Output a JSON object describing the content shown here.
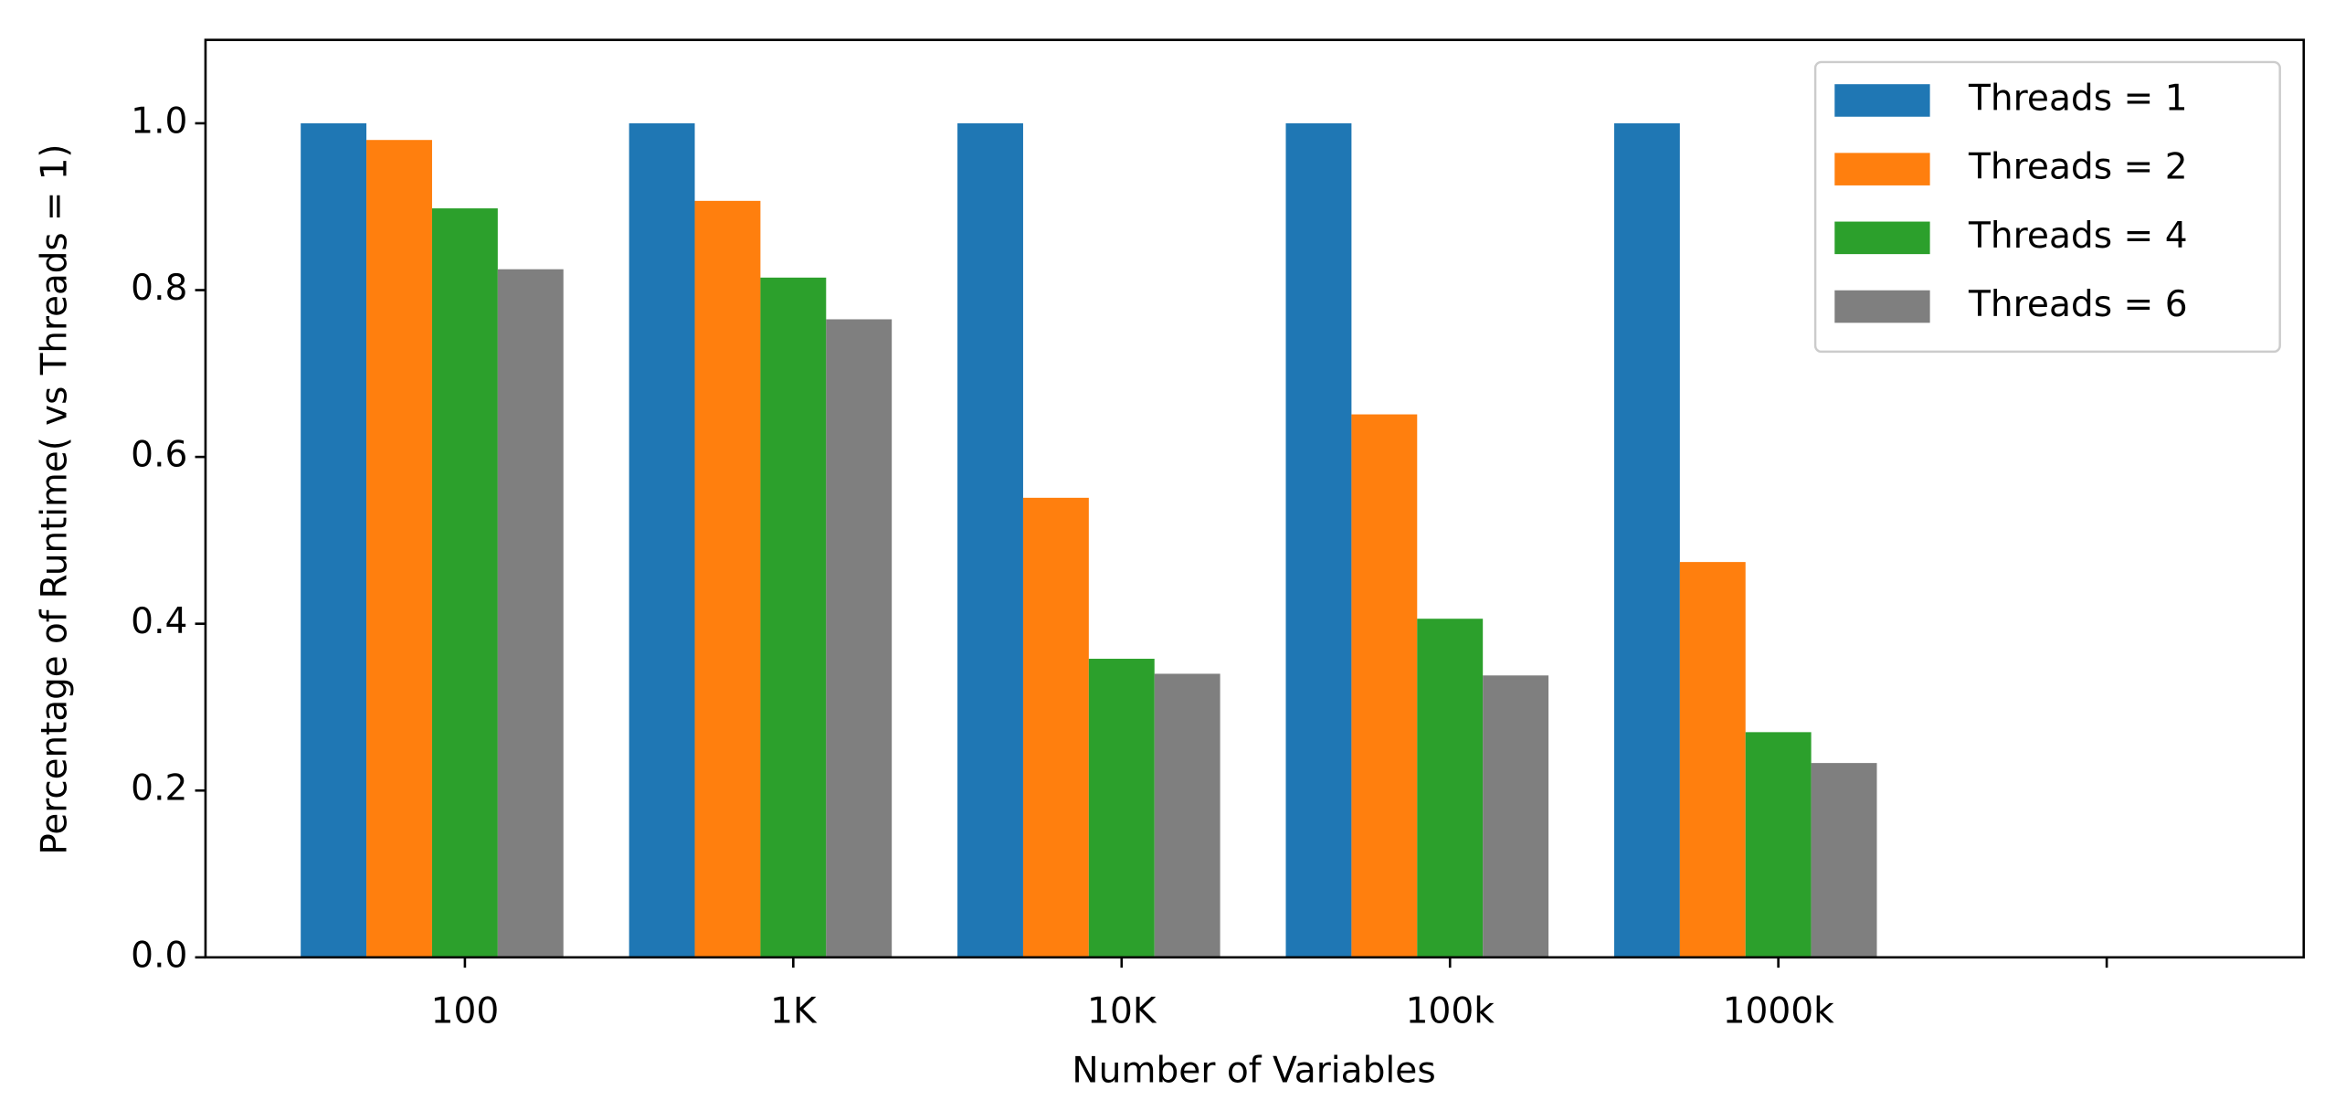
{
  "chart_data": {
    "type": "bar",
    "x_label": "Number of Variables",
    "y_label": "Percentage of Runtime( vs Threads = 1)",
    "categories": [
      "100",
      "1K",
      "10K",
      "100k",
      "1000k",
      null
    ],
    "series": [
      {
        "name": "Threads = 1",
        "color": "#1f77b4",
        "values": [
          1.0,
          1.0,
          1.0,
          1.0,
          1.0,
          null
        ]
      },
      {
        "name": "Threads = 2",
        "color": "#ff7f0e",
        "values": [
          0.98,
          0.907,
          0.551,
          0.651,
          0.474,
          null
        ]
      },
      {
        "name": "Threads = 4",
        "color": "#2ca02c",
        "values": [
          0.898,
          0.815,
          0.358,
          0.406,
          0.27,
          null
        ]
      },
      {
        "name": "Threads = 6",
        "color": "#7f7f7f",
        "values": [
          0.825,
          0.765,
          0.34,
          0.338,
          0.233,
          null
        ]
      }
    ],
    "ylim": [
      0,
      1.1
    ],
    "yticks": [
      {
        "value": 0,
        "label": "0.0"
      },
      0.2,
      0.4,
      0.6,
      0.8,
      {
        "value": 1,
        "label": "1.0"
      }
    ],
    "grid": false,
    "legend": "upper right"
  }
}
